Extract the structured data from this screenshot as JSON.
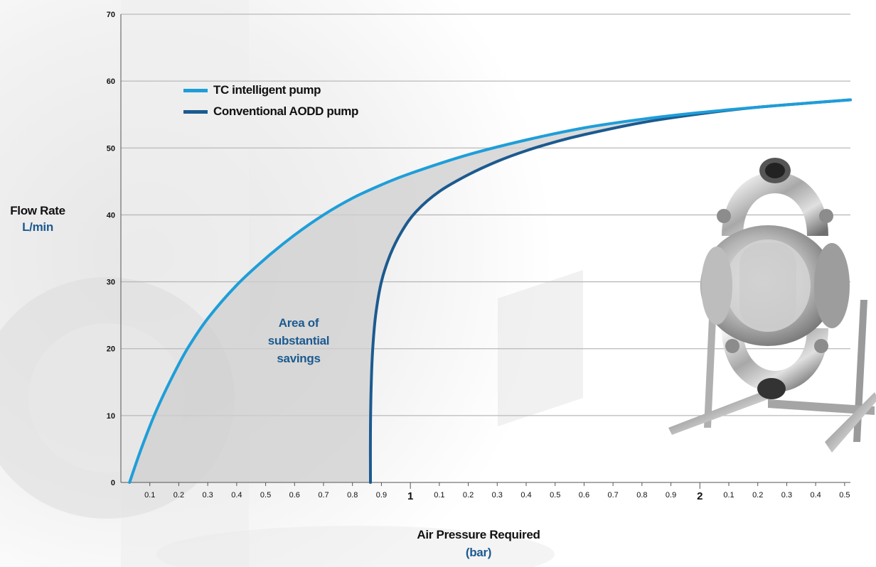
{
  "chart_data": {
    "type": "line",
    "title": "",
    "xlabel": "Air Pressure Required",
    "xunit": "(bar)",
    "ylabel": "Flow Rate",
    "yunit": "L/min",
    "xlim": [
      0,
      2.52
    ],
    "ylim": [
      0,
      70
    ],
    "grid": true,
    "yticks": [
      "0",
      "10",
      "20",
      "30",
      "40",
      "50",
      "60",
      "70"
    ],
    "xticks": [
      {
        "value": 0.1,
        "label": "0.1"
      },
      {
        "value": 0.2,
        "label": "0.2"
      },
      {
        "value": 0.3,
        "label": "0.3"
      },
      {
        "value": 0.4,
        "label": "0.4"
      },
      {
        "value": 0.5,
        "label": "0.5"
      },
      {
        "value": 0.6,
        "label": "0.6"
      },
      {
        "value": 0.7,
        "label": "0.7"
      },
      {
        "value": 0.8,
        "label": "0.8"
      },
      {
        "value": 0.9,
        "label": "0.9"
      },
      {
        "value": 1.0,
        "label": "1",
        "major": true
      },
      {
        "value": 1.1,
        "label": "0.1"
      },
      {
        "value": 1.2,
        "label": "0.2"
      },
      {
        "value": 1.3,
        "label": "0.3"
      },
      {
        "value": 1.4,
        "label": "0.4"
      },
      {
        "value": 1.5,
        "label": "0.5"
      },
      {
        "value": 1.6,
        "label": "0.6"
      },
      {
        "value": 1.7,
        "label": "0.7"
      },
      {
        "value": 1.8,
        "label": "0.8"
      },
      {
        "value": 1.9,
        "label": "0.9"
      },
      {
        "value": 2.0,
        "label": "2",
        "major": true
      },
      {
        "value": 2.1,
        "label": "0.1"
      },
      {
        "value": 2.2,
        "label": "0.2"
      },
      {
        "value": 2.3,
        "label": "0.3"
      },
      {
        "value": 2.4,
        "label": "0.4"
      },
      {
        "value": 2.5,
        "label": "0.5"
      }
    ],
    "series": [
      {
        "name": "TC intelligent pump",
        "color": "#1e9ed9",
        "x": [
          0.03,
          0.07,
          0.12,
          0.18,
          0.23,
          0.3,
          0.4,
          0.5,
          0.6,
          0.7,
          0.8,
          0.9,
          1.0,
          1.2,
          1.4,
          1.6,
          1.8,
          2.0,
          2.2,
          2.4,
          2.52
        ],
        "y": [
          0,
          5,
          10.5,
          16,
          20,
          24.5,
          29.5,
          33.5,
          37,
          40,
          42.5,
          44.5,
          46.2,
          49,
          51.2,
          53,
          54.3,
          55.3,
          56.1,
          56.8,
          57.2
        ]
      },
      {
        "name": "Conventional AODD pump",
        "color": "#1c5a8f",
        "x": [
          0.862,
          0.862,
          0.865,
          0.87,
          0.88,
          0.9,
          0.93,
          0.97,
          1.02,
          1.1,
          1.2,
          1.3,
          1.4,
          1.5,
          1.6,
          1.8,
          2.0,
          2.2,
          2.4,
          2.52
        ],
        "y": [
          0,
          8,
          15,
          20,
          25,
          30,
          34,
          37.5,
          40.5,
          43.5,
          46,
          48,
          49.6,
          50.9,
          52,
          53.8,
          55.1,
          56.1,
          56.8,
          57.2
        ]
      }
    ],
    "annotations": [
      {
        "text": "Area of\nsubstantial\nsavings"
      }
    ],
    "legend": {
      "placement": "top-left"
    }
  }
}
